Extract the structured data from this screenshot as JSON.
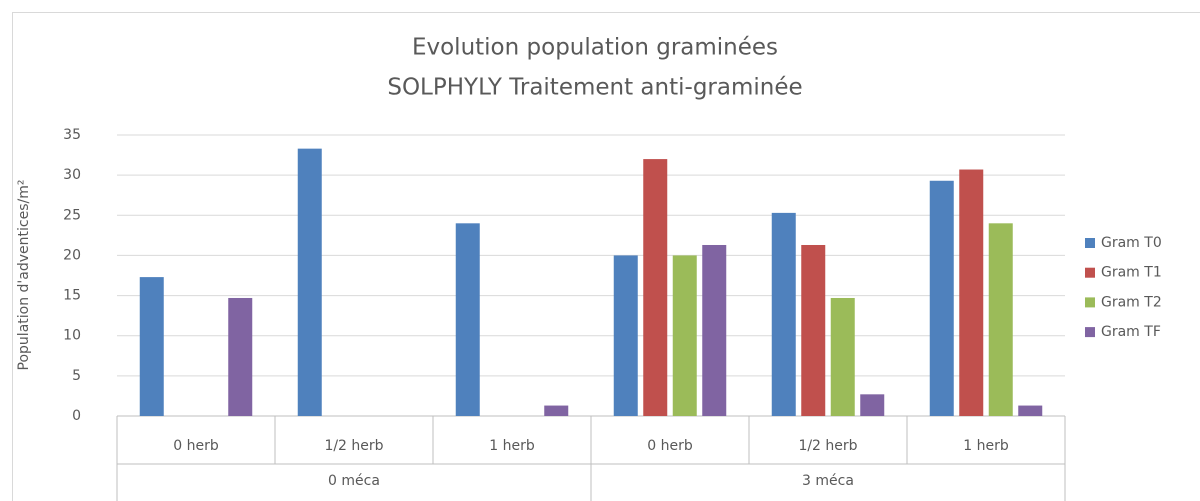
{
  "chart_data": {
    "type": "bar",
    "title": "Evolution population graminées",
    "subtitle": "SOLPHYLY Traitement anti-graminée",
    "y_label": "Population d'adventices/m²",
    "categories": [
      "0 herb",
      "1/2 herb",
      "1 herb",
      "0 herb",
      "1/2 herb",
      "1 herb"
    ],
    "category_groups": [
      "0 méca",
      "0 méca",
      "0 méca",
      "3 méca",
      "3 méca",
      "3 méca"
    ],
    "series": [
      {
        "name": "Gram T0",
        "color": "#4f81bd",
        "values": [
          17.3,
          33.3,
          24,
          20,
          25.3,
          29.3
        ]
      },
      {
        "name": "Gram T1",
        "color": "#c0504d",
        "values": [
          0,
          0,
          0,
          32,
          21.3,
          30.7
        ]
      },
      {
        "name": "Gram T2",
        "color": "#9bbb59",
        "values": [
          0,
          0,
          0,
          20,
          14.7,
          24
        ]
      },
      {
        "name": "Gram TF",
        "color": "#8064a2",
        "values": [
          14.7,
          0,
          1.3,
          21.3,
          2.7,
          1.3
        ]
      }
    ],
    "ylim": [
      0,
      35
    ],
    "yticks": [
      0,
      5,
      10,
      15,
      20,
      25,
      30,
      35
    ],
    "grid": true,
    "legend": "right"
  }
}
